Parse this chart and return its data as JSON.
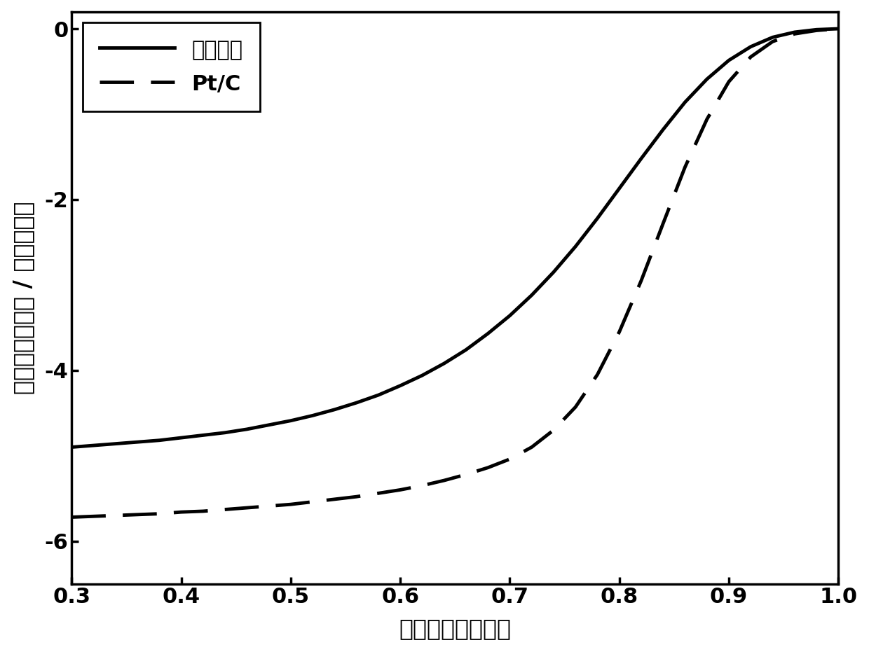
{
  "title": "",
  "xlabel": "电极电势（伏特）",
  "ylabel": "电流密度（毫安 / 平方厘米）",
  "xlim": [
    0.3,
    1.0
  ],
  "ylim": [
    -6.5,
    0.2
  ],
  "xticks": [
    0.3,
    0.4,
    0.5,
    0.6,
    0.7,
    0.8,
    0.9,
    1.0
  ],
  "yticks": [
    0,
    -2,
    -4,
    -6
  ],
  "legend_labels": [
    "碳催化剂",
    "Pt/C"
  ],
  "line_color": "#000000",
  "linewidth_solid": 3.5,
  "linewidth_dashed": 3.5,
  "font_size_labels": 24,
  "font_size_ticks": 22,
  "font_size_legend": 22,
  "background_color": "#ffffff",
  "solid_x": [
    0.3,
    0.32,
    0.34,
    0.36,
    0.38,
    0.4,
    0.42,
    0.44,
    0.46,
    0.48,
    0.5,
    0.52,
    0.54,
    0.56,
    0.58,
    0.6,
    0.62,
    0.64,
    0.66,
    0.68,
    0.7,
    0.72,
    0.74,
    0.76,
    0.78,
    0.8,
    0.82,
    0.84,
    0.86,
    0.88,
    0.9,
    0.92,
    0.94,
    0.96,
    0.98,
    1.0
  ],
  "solid_y": [
    -4.9,
    -4.88,
    -4.86,
    -4.84,
    -4.82,
    -4.79,
    -4.76,
    -4.73,
    -4.69,
    -4.64,
    -4.59,
    -4.53,
    -4.46,
    -4.38,
    -4.29,
    -4.18,
    -4.06,
    -3.92,
    -3.76,
    -3.57,
    -3.36,
    -3.12,
    -2.85,
    -2.55,
    -2.22,
    -1.87,
    -1.52,
    -1.18,
    -0.86,
    -0.59,
    -0.37,
    -0.21,
    -0.1,
    -0.04,
    -0.01,
    -0.0
  ],
  "dashed_x": [
    0.3,
    0.32,
    0.34,
    0.36,
    0.38,
    0.4,
    0.42,
    0.44,
    0.46,
    0.48,
    0.5,
    0.52,
    0.54,
    0.56,
    0.58,
    0.6,
    0.62,
    0.64,
    0.66,
    0.68,
    0.7,
    0.72,
    0.74,
    0.76,
    0.78,
    0.8,
    0.82,
    0.84,
    0.86,
    0.88,
    0.9,
    0.92,
    0.94,
    0.96,
    0.98,
    1.0
  ],
  "dashed_y": [
    -5.72,
    -5.71,
    -5.7,
    -5.69,
    -5.68,
    -5.66,
    -5.65,
    -5.63,
    -5.61,
    -5.59,
    -5.57,
    -5.54,
    -5.51,
    -5.48,
    -5.44,
    -5.4,
    -5.35,
    -5.29,
    -5.22,
    -5.14,
    -5.04,
    -4.9,
    -4.7,
    -4.43,
    -4.05,
    -3.55,
    -2.95,
    -2.28,
    -1.62,
    -1.06,
    -0.62,
    -0.33,
    -0.15,
    -0.06,
    -0.02,
    -0.0
  ]
}
